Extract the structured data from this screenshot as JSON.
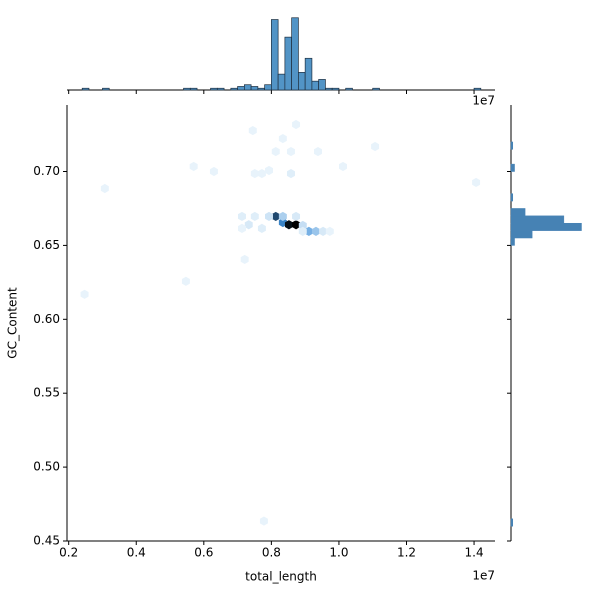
{
  "chart_data": [
    {
      "type": "hexbin",
      "xlabel": "total_length",
      "ylabel": "GC_Content",
      "x_offset_label": "1e7",
      "x": [
        0.813,
        0.834,
        0.852,
        0.873,
        0.793,
        0.834,
        0.893,
        0.911,
        0.932,
        0.953,
        0.973,
        0.772,
        0.733,
        0.713,
        0.751,
        0.873,
        0.713,
        0.745,
        0.873,
        0.834,
        0.813,
        0.858,
        0.938,
        1.107,
        0.751,
        0.772,
        0.793,
        0.858,
        0.63,
        0.57,
        0.307,
        1.012,
        1.406,
        0.721,
        0.547,
        0.247,
        0.778,
        0.893
      ],
      "y": [
        0.6696,
        0.6655,
        0.664,
        0.664,
        0.6696,
        0.6696,
        0.6635,
        0.6595,
        0.6595,
        0.6595,
        0.6595,
        0.6615,
        0.664,
        0.6696,
        0.6696,
        0.6696,
        0.6615,
        0.7277,
        0.7318,
        0.7223,
        0.7135,
        0.7135,
        0.7135,
        0.7169,
        0.6986,
        0.6986,
        0.7007,
        0.6986,
        0.7,
        0.7034,
        0.6885,
        0.7034,
        0.6926,
        0.6405,
        0.6257,
        0.6169,
        0.4635,
        0.6595
      ],
      "counts": [
        30,
        22,
        38,
        40,
        4,
        8,
        5,
        14,
        10,
        3,
        1,
        2,
        3,
        2,
        2,
        3,
        1,
        1,
        1,
        1,
        1,
        1,
        1,
        1,
        1,
        1,
        1,
        2,
        1,
        1,
        1,
        1,
        1,
        1,
        1,
        1,
        1,
        2
      ],
      "colormap": [
        "#e8f3fb",
        "#3f8fd8",
        "#000000"
      ],
      "xlim": [
        0.195,
        1.462
      ],
      "ylim": [
        0.45,
        0.745
      ],
      "xticks": [
        0.2,
        0.4,
        0.6,
        0.8,
        {
          "value": 1.0,
          "label": "1.0"
        },
        1.2,
        1.4
      ],
      "yticks": [
        0.45,
        {
          "value": 0.5,
          "label": "0.50"
        },
        0.55,
        {
          "value": 0.6,
          "label": "0.60"
        },
        0.65,
        {
          "value": 0.7,
          "label": "0.70"
        }
      ]
    },
    {
      "type": "histogram",
      "orientation": "vertical",
      "offset_label": "1e7",
      "color": "#5294c6",
      "edgecolor": "#1f2f3f",
      "bins": [
        0.22,
        0.24,
        0.26,
        0.28,
        0.3,
        0.32,
        0.34,
        0.36,
        0.38,
        0.4,
        0.42,
        0.44,
        0.46,
        0.48,
        0.5,
        0.52,
        0.54,
        0.56,
        0.58,
        0.6,
        0.62,
        0.64,
        0.66,
        0.68,
        0.7,
        0.72,
        0.74,
        0.76,
        0.78,
        0.8,
        0.82,
        0.84,
        0.86,
        0.88,
        0.9,
        0.92,
        0.94,
        0.96,
        0.98,
        1.0,
        1.02,
        1.04,
        1.06,
        1.08,
        1.1,
        1.12,
        1.14,
        1.16,
        1.18,
        1.2,
        1.22,
        1.24,
        1.26,
        1.28,
        1.3,
        1.32,
        1.34,
        1.36,
        1.38,
        1.4,
        1.42
      ],
      "counts": [
        0,
        1,
        0,
        0,
        1,
        0,
        0,
        0,
        0,
        0,
        0,
        0,
        0,
        0,
        0,
        0,
        1,
        1,
        0,
        0,
        1,
        1,
        0,
        1,
        2,
        3,
        2,
        1,
        3,
        40,
        9,
        30,
        41,
        10,
        18,
        5,
        6,
        1,
        1,
        0,
        1,
        0,
        0,
        0,
        1,
        0,
        0,
        0,
        0,
        0,
        0,
        0,
        0,
        0,
        0,
        0,
        0,
        0,
        0,
        1
      ],
      "xlim": [
        0.195,
        1.462
      ],
      "ylim": [
        0,
        42
      ]
    },
    {
      "type": "histogram",
      "orientation": "horizontal",
      "color": "#4682b4",
      "edgecolor": "#4682b4",
      "bins": [
        0.45,
        0.455,
        0.46,
        0.465,
        0.47,
        0.475,
        0.48,
        0.485,
        0.49,
        0.495,
        0.5,
        0.505,
        0.51,
        0.515,
        0.52,
        0.525,
        0.53,
        0.535,
        0.54,
        0.545,
        0.55,
        0.555,
        0.56,
        0.565,
        0.57,
        0.575,
        0.58,
        0.585,
        0.59,
        0.595,
        0.6,
        0.605,
        0.61,
        0.615,
        0.62,
        0.625,
        0.63,
        0.635,
        0.64,
        0.645,
        0.65,
        0.655,
        0.66,
        0.665,
        0.67,
        0.675,
        0.68,
        0.685,
        0.69,
        0.695,
        0.7,
        0.705,
        0.71,
        0.715,
        0.72,
        0.725,
        0.73,
        0.735,
        0.74,
        0.745
      ],
      "counts": [
        0,
        0,
        1,
        0,
        0,
        0,
        0,
        0,
        0,
        0,
        0,
        0,
        0,
        0,
        0,
        0,
        0,
        0,
        0,
        0,
        0,
        0,
        0,
        0,
        0,
        0,
        0,
        0,
        0,
        0,
        0,
        0,
        0,
        0,
        0,
        0,
        0,
        0,
        0,
        0,
        2,
        12,
        40,
        30,
        8,
        0,
        1,
        0,
        0,
        0,
        2,
        0,
        0,
        1,
        0,
        0,
        0,
        0,
        0
      ],
      "xlim": [
        0,
        42
      ],
      "ylim": [
        0.45,
        0.745
      ]
    }
  ]
}
